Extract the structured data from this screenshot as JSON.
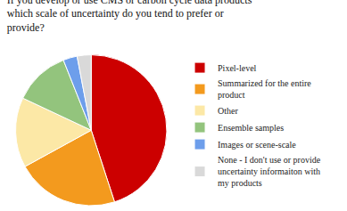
{
  "chart_data": {
    "type": "pie",
    "title": "If you develop or use CMS or carbon cycle data products which scale of uncertainty do you tend to prefer or provide?",
    "categories": [
      "Pixel-level",
      "Summarized for the entire product",
      "Other",
      "Ensemble samples",
      "Images or scene-scale",
      "None - I don't use or provide uncertainty informaiton with my products"
    ],
    "values": [
      45,
      22,
      15,
      12,
      3,
      3
    ],
    "colors": [
      "#cc0000",
      "#f39a1e",
      "#fce8a6",
      "#93c47d",
      "#6d9eeb",
      "#d9d9d9"
    ],
    "legend": "right"
  }
}
